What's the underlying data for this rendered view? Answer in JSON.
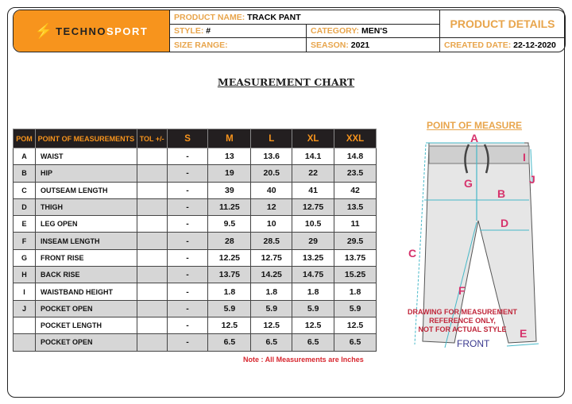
{
  "header": {
    "brand": {
      "prefix": "TECHNO",
      "suffix": "SPORT"
    },
    "product_name_label": "PRODUCT NAME:",
    "product_name": "TRACK PANT",
    "style_label": "STYLE:",
    "style": "#",
    "category_label": "CATEGORY:",
    "category": "MEN'S",
    "size_range_label": "SIZE RANGE:",
    "size_range": "",
    "season_label": "SEASON:",
    "season": "2021",
    "product_details": "PRODUCT DETAILS",
    "created_date_label": "CREATED DATE:",
    "created_date": "22-12-2020"
  },
  "title": "MEASUREMENT CHART",
  "table": {
    "columns": [
      "POM",
      "POINT OF MEASUREMENTS",
      "TOL +/-",
      "S",
      "M",
      "L",
      "XL",
      "XXL"
    ],
    "rows": [
      [
        "A",
        "WAIST",
        "",
        "-",
        "13",
        "13.6",
        "14.1",
        "14.8"
      ],
      [
        "B",
        "HIP",
        "",
        "-",
        "19",
        "20.5",
        "22",
        "23.5"
      ],
      [
        "C",
        "OUTSEAM LENGTH",
        "",
        "-",
        "39",
        "40",
        "41",
        "42"
      ],
      [
        "D",
        "THIGH",
        "",
        "-",
        "11.25",
        "12",
        "12.75",
        "13.5"
      ],
      [
        "E",
        "LEG OPEN",
        "",
        "-",
        "9.5",
        "10",
        "10.5",
        "11"
      ],
      [
        "F",
        "INSEAM LENGTH",
        "",
        "-",
        "28",
        "28.5",
        "29",
        "29.5"
      ],
      [
        "G",
        "FRONT RISE",
        "",
        "-",
        "12.25",
        "12.75",
        "13.25",
        "13.75"
      ],
      [
        "H",
        "BACK RISE",
        "",
        "-",
        "13.75",
        "14.25",
        "14.75",
        "15.25"
      ],
      [
        "I",
        "WAISTBAND HEIGHT",
        "",
        "-",
        "1.8",
        "1.8",
        "1.8",
        "1.8"
      ],
      [
        "J",
        "POCKET OPEN",
        "",
        "-",
        "5.9",
        "5.9",
        "5.9",
        "5.9"
      ],
      [
        "",
        "POCKET LENGTH",
        "",
        "-",
        "12.5",
        "12.5",
        "12.5",
        "12.5"
      ],
      [
        "",
        "POCKET OPEN",
        "",
        "-",
        "6.5",
        "6.5",
        "6.5",
        "6.5"
      ]
    ]
  },
  "note": "Note : All Measurements are Inches",
  "diagram": {
    "title": "POINT OF MEASURE",
    "labels": {
      "A": "A",
      "B": "B",
      "C": "C",
      "D": "D",
      "E": "E",
      "F": "F",
      "G": "G",
      "I": "I",
      "J": "J"
    },
    "disclaimer": [
      "DRAWING FOR MEASUREMENT",
      "REFERENCE ONLY,",
      "NOT FOR  ACTUAL STYLE"
    ],
    "view": "FRONT"
  },
  "colors": {
    "accent": "#f7941d",
    "label": "#e8a54c",
    "header_bg": "#231f20",
    "pom_label": "#d6336c",
    "note": "#d7262e"
  }
}
